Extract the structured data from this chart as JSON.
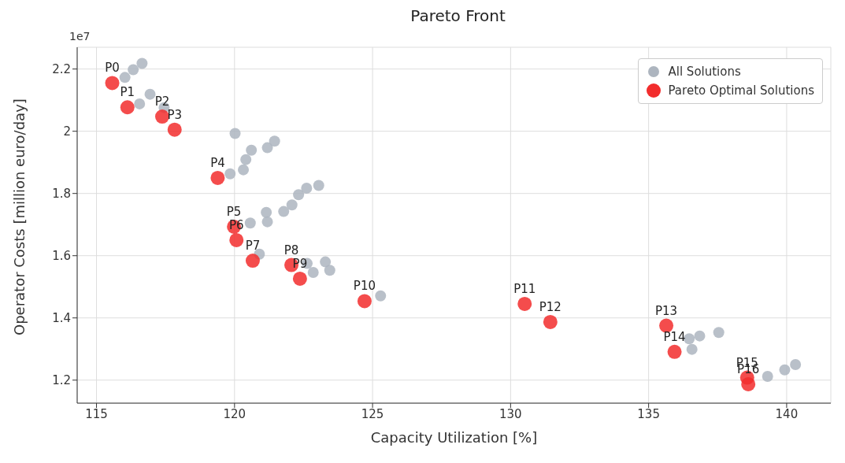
{
  "chart_data": {
    "type": "scatter",
    "title": "Pareto Front",
    "xlabel": "Capacity Utilization [%]",
    "ylabel": "Operator Costs [million euro/day]",
    "xlim": [
      114.3,
      141.6
    ],
    "xticks": [
      115,
      120,
      125,
      130,
      135,
      140
    ],
    "ylim": [
      1.126,
      2.27
    ],
    "yticks": [
      1.2,
      1.4,
      1.6,
      1.8,
      2.0,
      2.2
    ],
    "grid": true,
    "legend": "top right",
    "marker": "circle",
    "series": [
      {
        "name": "All Solutions",
        "color": "#adb5bf",
        "x": [
          116.03,
          116.33,
          116.65,
          116.56,
          116.94,
          117.45,
          120.02,
          119.84,
          120.32,
          120.41,
          120.61,
          121.19,
          121.45,
          120.57,
          121.15,
          121.19,
          121.78,
          122.08,
          122.32,
          122.61,
          123.05,
          120.9,
          122.63,
          122.85,
          123.29,
          123.45,
          125.29,
          136.47,
          136.85,
          137.54,
          136.57,
          139.31,
          139.93,
          140.32
        ],
        "values": [
          2.173,
          2.198,
          2.218,
          2.088,
          2.119,
          2.076,
          1.993,
          1.863,
          1.876,
          1.909,
          1.939,
          1.947,
          1.968,
          1.705,
          1.739,
          1.709,
          1.742,
          1.763,
          1.796,
          1.817,
          1.826,
          1.605,
          1.575,
          1.546,
          1.58,
          1.553,
          1.471,
          1.333,
          1.342,
          1.353,
          1.299,
          1.212,
          1.233,
          1.25
        ]
      },
      {
        "name": "Pareto Optimal Solutions",
        "color": "#f22d2d",
        "x": [
          115.57,
          116.12,
          117.38,
          117.83,
          119.39,
          119.98,
          120.07,
          120.66,
          122.06,
          122.37,
          124.71,
          130.51,
          131.44,
          135.64,
          135.94,
          138.57,
          138.61
        ],
        "values": [
          2.155,
          2.077,
          2.047,
          2.005,
          1.85,
          1.693,
          1.65,
          1.584,
          1.57,
          1.526,
          1.454,
          1.445,
          1.387,
          1.375,
          1.291,
          1.208,
          1.187
        ]
      }
    ],
    "annotations": [
      "1e7",
      {
        "text": "P0",
        "x": 115.57,
        "y": 2.155
      },
      {
        "text": "P1",
        "x": 116.12,
        "y": 2.077
      },
      {
        "text": "P2",
        "x": 117.38,
        "y": 2.047
      },
      {
        "text": "P3",
        "x": 117.83,
        "y": 2.005
      },
      {
        "text": "P4",
        "x": 119.39,
        "y": 1.85
      },
      {
        "text": "P5",
        "x": 119.98,
        "y": 1.693
      },
      {
        "text": "P6",
        "x": 120.07,
        "y": 1.65
      },
      {
        "text": "P7",
        "x": 120.66,
        "y": 1.584
      },
      {
        "text": "P8",
        "x": 122.06,
        "y": 1.57
      },
      {
        "text": "P9",
        "x": 122.37,
        "y": 1.526
      },
      {
        "text": "P10",
        "x": 124.71,
        "y": 1.454
      },
      {
        "text": "P11",
        "x": 130.51,
        "y": 1.445
      },
      {
        "text": "P12",
        "x": 131.44,
        "y": 1.387
      },
      {
        "text": "P13",
        "x": 135.64,
        "y": 1.375
      },
      {
        "text": "P14",
        "x": 135.94,
        "y": 1.291
      },
      {
        "text": "P15",
        "x": 138.57,
        "y": 1.208
      },
      {
        "text": "P16",
        "x": 138.61,
        "y": 1.187
      }
    ]
  }
}
